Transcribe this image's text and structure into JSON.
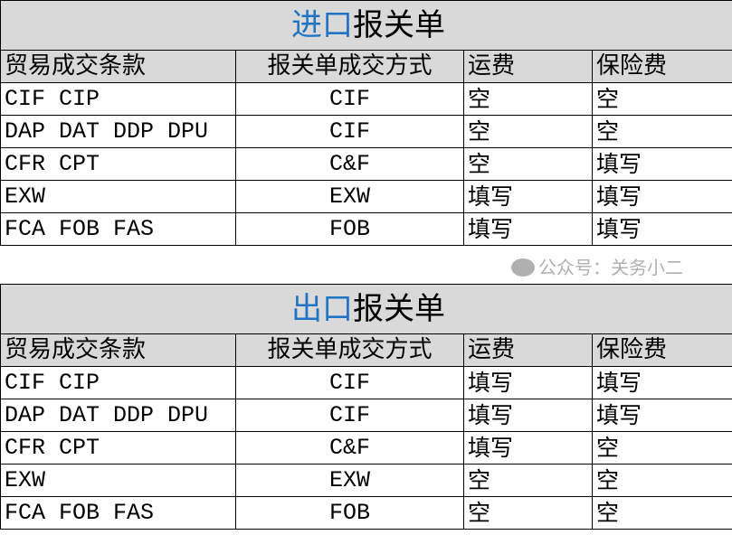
{
  "columns": [
    "贸易成交条款",
    "报关单成交方式",
    "运费",
    "保险费"
  ],
  "tables": [
    {
      "title_prefix": "进口",
      "title_suffix": "报关单",
      "rows": [
        [
          "CIF CIP",
          "CIF",
          "空",
          "空"
        ],
        [
          "DAP DAT DDP DPU",
          "CIF",
          "空",
          "空"
        ],
        [
          "CFR CPT",
          "C&F",
          "空",
          "填写"
        ],
        [
          "EXW",
          "EXW",
          "填写",
          "填写"
        ],
        [
          "FCA FOB FAS",
          "FOB",
          "填写",
          "填写"
        ]
      ]
    },
    {
      "title_prefix": "出口",
      "title_suffix": "报关单",
      "rows": [
        [
          "CIF CIP",
          "CIF",
          "填写",
          "填写"
        ],
        [
          "DAP DAT DDP DPU",
          "CIF",
          "填写",
          "填写"
        ],
        [
          "CFR CPT",
          "C&F",
          "填写",
          "空"
        ],
        [
          "EXW",
          "EXW",
          "空",
          "空"
        ],
        [
          "FCA FOB FAS",
          "FOB",
          "空",
          "空"
        ]
      ]
    }
  ],
  "watermark": "公众号：关务小二",
  "colors": {
    "title_accent": "#1f74c4",
    "header_bg": "#d9d9d9"
  }
}
